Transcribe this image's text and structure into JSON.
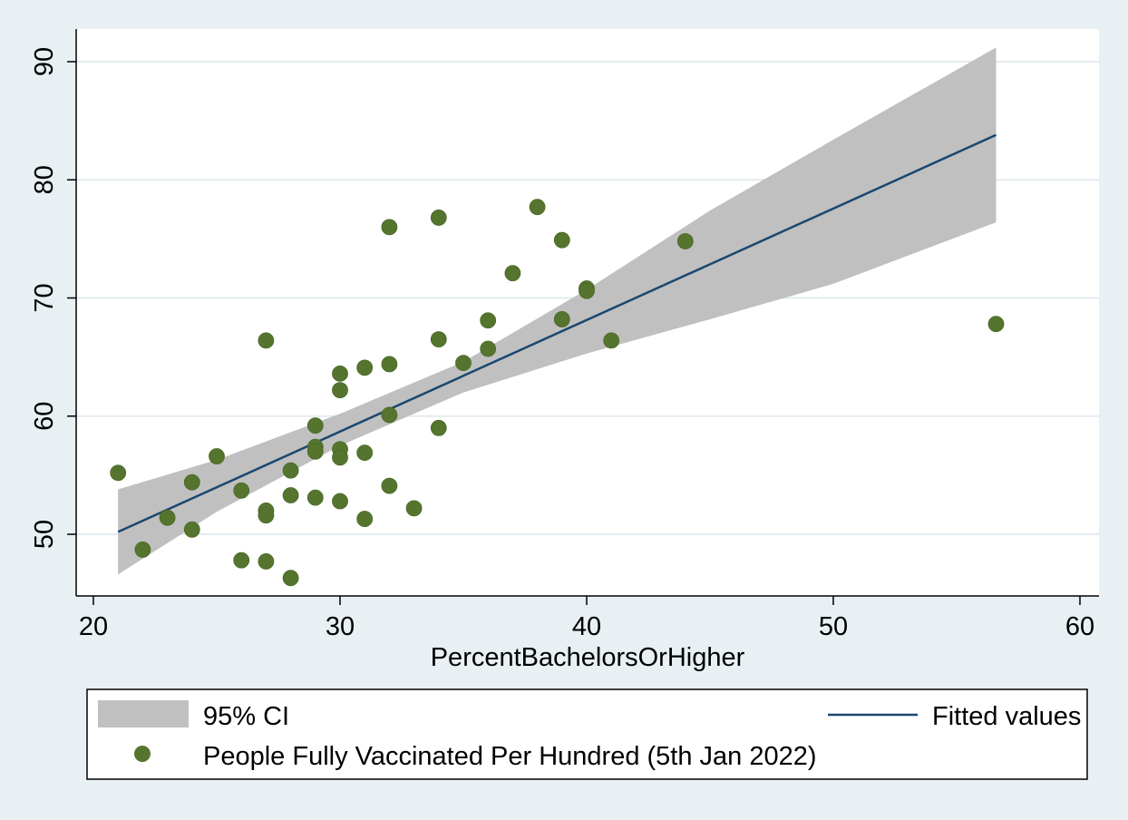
{
  "chart_data": {
    "type": "scatter",
    "xlabel": "PercentBachelorsOrHigher",
    "ylabel": "",
    "xlim": [
      20,
      60
    ],
    "ylim": [
      45.5,
      93
    ],
    "xticks": [
      "20",
      "30",
      "40",
      "50",
      "60"
    ],
    "yticks": [
      "50",
      "60",
      "70",
      "80",
      "90"
    ],
    "grid": "horizontal",
    "legend_position": "bottom",
    "colors": {
      "background": "#e8f0f3",
      "plot_area": "#ffffff",
      "gridline": "#e3ecef",
      "ci_band": "#c0c0c0",
      "fit_line": "#1a476f",
      "points": "#55752f"
    },
    "series": [
      {
        "name": "People Fully Vaccinated Per Hundred (5th Jan 2022)",
        "kind": "scatter",
        "points": [
          [
            21,
            55.2
          ],
          [
            22,
            48.7
          ],
          [
            23,
            51.4
          ],
          [
            24,
            54.4
          ],
          [
            24,
            50.4
          ],
          [
            25,
            56.6
          ],
          [
            26,
            53.7
          ],
          [
            26,
            47.8
          ],
          [
            27,
            66.4
          ],
          [
            27,
            52.0
          ],
          [
            27,
            51.6
          ],
          [
            27,
            47.7
          ],
          [
            28,
            55.4
          ],
          [
            28,
            53.3
          ],
          [
            28,
            46.3
          ],
          [
            29,
            59.2
          ],
          [
            29,
            57.4
          ],
          [
            29,
            57.0
          ],
          [
            29,
            53.1
          ],
          [
            30,
            63.6
          ],
          [
            30,
            62.2
          ],
          [
            30,
            57.2
          ],
          [
            30,
            56.5
          ],
          [
            30,
            52.8
          ],
          [
            31,
            64.1
          ],
          [
            31,
            56.9
          ],
          [
            31,
            51.3
          ],
          [
            32,
            76.0
          ],
          [
            32,
            64.4
          ],
          [
            32,
            60.1
          ],
          [
            32,
            54.1
          ],
          [
            33,
            52.2
          ],
          [
            34,
            76.8
          ],
          [
            34,
            66.5
          ],
          [
            34,
            59.0
          ],
          [
            35,
            64.5
          ],
          [
            36,
            68.1
          ],
          [
            36,
            65.7
          ],
          [
            37,
            72.1
          ],
          [
            38,
            77.7
          ],
          [
            39,
            74.9
          ],
          [
            39,
            68.2
          ],
          [
            40,
            70.8
          ],
          [
            40,
            70.6
          ],
          [
            41,
            66.4
          ],
          [
            44,
            74.8
          ],
          [
            56.6,
            67.8
          ]
        ]
      },
      {
        "name": "Fitted values",
        "kind": "line",
        "points": [
          [
            21,
            50.2
          ],
          [
            56.6,
            83.8
          ]
        ]
      },
      {
        "name": "95% CI",
        "kind": "band",
        "x": [
          21,
          25,
          30,
          35,
          40,
          45,
          50,
          56.6
        ],
        "lower": [
          46.6,
          51.9,
          57.5,
          62.0,
          65.3,
          68.2,
          71.2,
          76.4
        ],
        "upper": [
          53.8,
          56.3,
          60.2,
          64.6,
          70.7,
          77.4,
          83.4,
          91.2
        ]
      }
    ],
    "legend": {
      "ci_label": "95% CI",
      "fit_label": "Fitted values",
      "points_label": "People Fully Vaccinated Per Hundred (5th Jan 2022)"
    }
  }
}
